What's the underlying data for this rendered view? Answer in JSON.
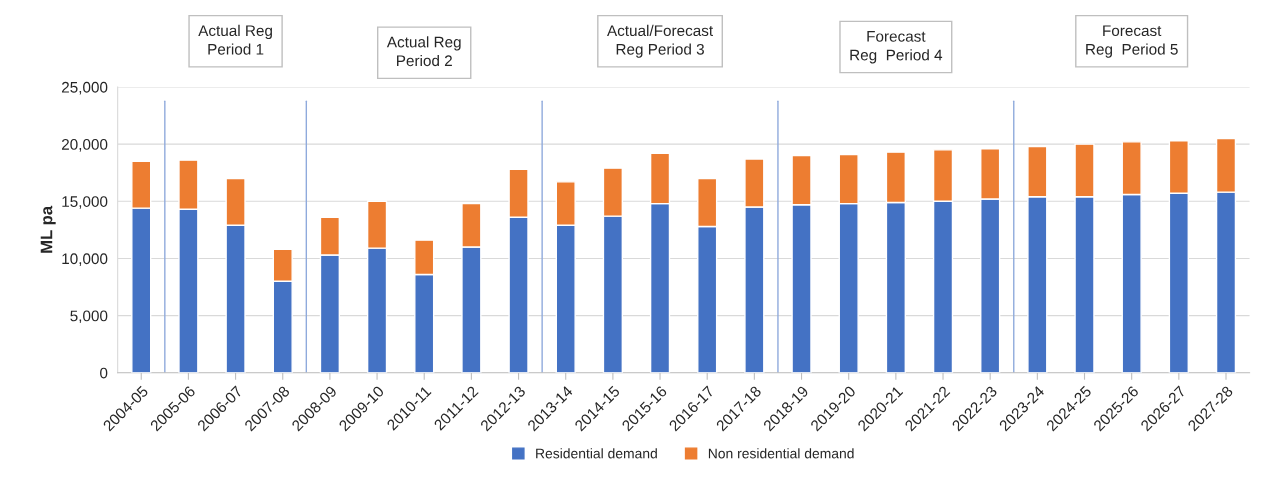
{
  "chart_data": {
    "type": "bar",
    "stacked": true,
    "ylabel": "ML pa",
    "categories": [
      "2004-05",
      "2005-06",
      "2006-07",
      "2007-08",
      "2008-09",
      "2009-10",
      "2010-11",
      "2011-12",
      "2012-13",
      "2013-14",
      "2014-15",
      "2015-16",
      "2016-17",
      "2017-18",
      "2018-19",
      "2019-20",
      "2020-21",
      "2021-22",
      "2022-23",
      "2023-24",
      "2024-25",
      "2025-26",
      "2026-27",
      "2027-28"
    ],
    "series": [
      {
        "name": "Residential demand",
        "color": "#4472c4",
        "values": [
          14400,
          14300,
          12900,
          8000,
          10300,
          10900,
          8600,
          11000,
          13600,
          12900,
          13700,
          14800,
          12800,
          14500,
          14700,
          14800,
          14900,
          15000,
          15200,
          15400,
          15400,
          15600,
          15700,
          15800
        ]
      },
      {
        "name": "Non residential demand",
        "color": "#ed7d31",
        "values": [
          4100,
          4300,
          4100,
          2800,
          3300,
          4100,
          3000,
          3800,
          4200,
          3800,
          4200,
          4400,
          4200,
          4200,
          4300,
          4300,
          4400,
          4500,
          4400,
          4400,
          4600,
          4600,
          4600,
          4700
        ]
      }
    ],
    "ylim": [
      0,
      25000
    ],
    "yticks": [
      0,
      {
        "value": 5000,
        "label": "5,000"
      },
      {
        "value": 10000,
        "label": "10,000"
      },
      {
        "value": 15000,
        "label": "15,000"
      },
      {
        "value": 20000,
        "label": "20,000"
      },
      {
        "value": 25000,
        "label": "25,000"
      }
    ],
    "grid": "y",
    "legend": "bottom",
    "ref_lines": [
      {
        "axis": "x",
        "value": "2005-06",
        "color": "#8faadc"
      },
      {
        "axis": "x",
        "value": "2008-09",
        "color": "#8faadc"
      },
      {
        "axis": "x",
        "value": "2013-14",
        "color": "#8faadc"
      },
      {
        "axis": "x",
        "value": "2018-19",
        "color": "#8faadc"
      },
      {
        "axis": "x",
        "value": "2023-24",
        "color": "#8faadc"
      }
    ],
    "annotations": [
      "Actual Reg\nPeriod 1",
      "Actual Reg\nPeriod 2",
      "Actual/Forecast\nReg Period 3",
      "Forecast\nReg  Period 4",
      "Forecast\nReg  Period 5"
    ]
  }
}
